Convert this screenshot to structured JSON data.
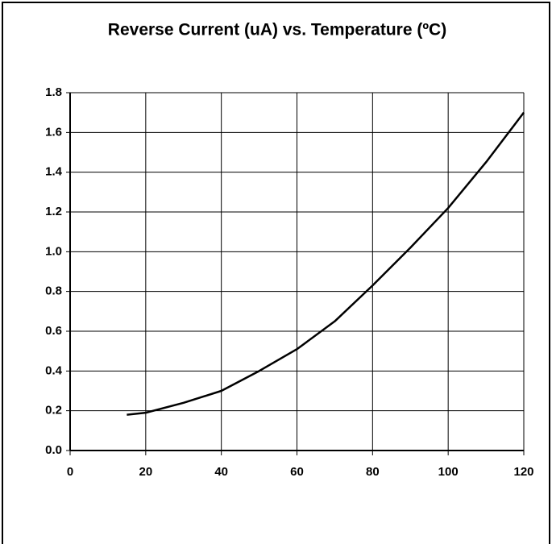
{
  "chart_data": {
    "type": "line",
    "title": "Reverse Current (uA) vs. Temperature (ºC)",
    "x": [
      15,
      20,
      30,
      40,
      50,
      60,
      70,
      80,
      90,
      100,
      110,
      120
    ],
    "series": [
      {
        "color": "#000000",
        "values": [
          0.18,
          0.19,
          0.24,
          0.3,
          0.4,
          0.51,
          0.65,
          0.83,
          1.02,
          1.22,
          1.45,
          1.7
        ]
      }
    ],
    "xlim": [
      0,
      120
    ],
    "xticks": [
      0,
      20,
      40,
      60,
      80,
      100,
      120
    ],
    "ylim": [
      0,
      1.8
    ],
    "yticks": [
      {
        "value": 0,
        "label": "0.0"
      },
      0.2,
      0.4,
      0.6,
      0.8,
      {
        "value": 1,
        "label": "1.0"
      },
      1.2,
      1.4,
      1.6,
      1.8
    ],
    "grid": true
  }
}
